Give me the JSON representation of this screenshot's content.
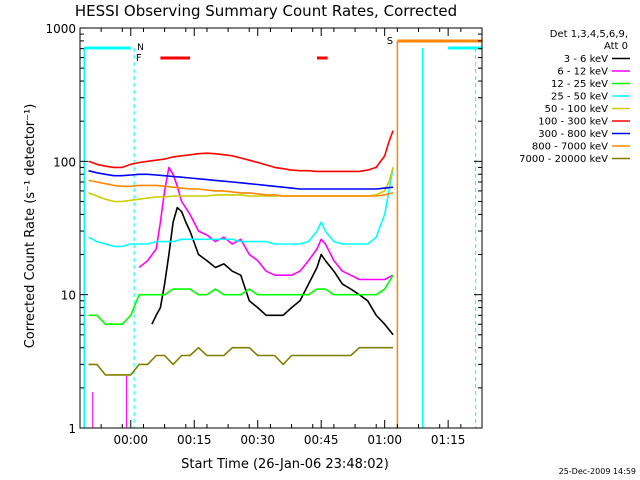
{
  "chart_data": {
    "type": "line",
    "title": "HESSI Observing Summary Count Rates, Corrected",
    "xlabel": "Start Time (26-Jan-06 23:48:02)",
    "ylabel": "Corrected Count Rate (s⁻¹ detector⁻¹)",
    "yscale": "log",
    "ylim": [
      1,
      1000
    ],
    "xlim_minutes": [
      0,
      95
    ],
    "x_ticks": [
      "00:00",
      "00:15",
      "00:30",
      "00:45",
      "01:00",
      "01:15"
    ],
    "x_tick_minutes": [
      12,
      27,
      42,
      57,
      72,
      87
    ],
    "y_ticks": [
      "1",
      "10",
      "100",
      "1000"
    ],
    "y_tick_values": [
      1,
      10,
      100,
      1000
    ],
    "legend_header": [
      "Det 1,3,4,5,6,9,",
      "Att 0"
    ],
    "legend_position": "right",
    "footer_timestamp": "25-Dec-2009 14:59",
    "series": [
      {
        "name": "3 - 6 keV",
        "color": "#000000",
        "x": [
          17,
          18,
          19,
          20,
          21,
          22,
          23,
          24,
          25,
          26,
          28,
          30,
          32,
          34,
          36,
          38,
          40,
          42,
          44,
          46,
          48,
          50,
          52,
          54,
          56,
          57,
          58,
          60,
          62,
          64,
          66,
          68,
          70,
          72,
          74
        ],
        "values": [
          6,
          7,
          8,
          12,
          20,
          35,
          45,
          42,
          35,
          30,
          20,
          18,
          16,
          17,
          15,
          14,
          9,
          8,
          7,
          7,
          7,
          8,
          9,
          12,
          16,
          20,
          18,
          15,
          12,
          11,
          10,
          9,
          7,
          6,
          5
        ]
      },
      {
        "name": "6 - 12 keV",
        "color": "#ff00ff",
        "x": [
          14,
          16,
          18,
          19,
          20,
          21,
          22,
          23,
          24,
          26,
          28,
          30,
          32,
          34,
          36,
          38,
          40,
          42,
          44,
          46,
          48,
          50,
          52,
          54,
          56,
          57,
          58,
          60,
          62,
          64,
          66,
          68,
          70,
          72,
          74
        ],
        "values": [
          16,
          18,
          22,
          35,
          60,
          90,
          80,
          65,
          50,
          40,
          30,
          28,
          25,
          27,
          24,
          26,
          20,
          18,
          15,
          14,
          14,
          14,
          15,
          18,
          22,
          26,
          24,
          18,
          15,
          14,
          13,
          13,
          13,
          13,
          14
        ]
      },
      {
        "name": "12 - 25 keV",
        "color": "#00ff00",
        "x": [
          2,
          4,
          6,
          8,
          10,
          12,
          14,
          16,
          18,
          20,
          22,
          24,
          26,
          28,
          30,
          32,
          34,
          36,
          38,
          40,
          42,
          44,
          46,
          48,
          50,
          52,
          54,
          56,
          58,
          60,
          62,
          64,
          66,
          68,
          70,
          72,
          74
        ],
        "values": [
          7,
          7,
          6,
          6,
          6,
          7,
          10,
          10,
          10,
          10,
          11,
          11,
          11,
          10,
          10,
          11,
          10,
          10,
          10,
          11,
          10,
          10,
          10,
          10,
          10,
          10,
          10,
          11,
          11,
          10,
          10,
          10,
          10,
          10,
          10,
          11,
          14
        ]
      },
      {
        "name": "25 - 50 keV",
        "color": "#00ffff",
        "x": [
          2,
          4,
          6,
          8,
          10,
          12,
          14,
          16,
          18,
          20,
          22,
          24,
          26,
          28,
          30,
          32,
          34,
          36,
          38,
          40,
          42,
          44,
          46,
          48,
          50,
          52,
          54,
          56,
          57,
          58,
          60,
          62,
          64,
          66,
          68,
          70,
          72,
          73,
          74
        ],
        "values": [
          27,
          25,
          24,
          23,
          23,
          24,
          24,
          24,
          25,
          25,
          25,
          26,
          26,
          26,
          26,
          26,
          26,
          26,
          25,
          25,
          25,
          25,
          24,
          24,
          24,
          24,
          25,
          30,
          35,
          30,
          25,
          24,
          24,
          24,
          24,
          27,
          40,
          60,
          90
        ]
      },
      {
        "name": "50 - 100 keV",
        "color": "#cccc00",
        "x": [
          2,
          4,
          6,
          8,
          10,
          12,
          14,
          16,
          18,
          20,
          22,
          24,
          26,
          28,
          30,
          32,
          34,
          36,
          38,
          40,
          42,
          44,
          46,
          48,
          50,
          52,
          54,
          56,
          58,
          60,
          62,
          64,
          66,
          68,
          70,
          72,
          73,
          74
        ],
        "values": [
          58,
          55,
          52,
          50,
          50,
          51,
          52,
          53,
          54,
          54,
          55,
          55,
          55,
          55,
          55,
          56,
          56,
          56,
          56,
          55,
          55,
          55,
          55,
          55,
          55,
          55,
          55,
          55,
          55,
          55,
          55,
          55,
          55,
          55,
          56,
          60,
          70,
          90
        ]
      },
      {
        "name": "100 - 300 keV",
        "color": "#ff0000",
        "x": [
          2,
          4,
          6,
          8,
          10,
          12,
          14,
          16,
          18,
          20,
          22,
          24,
          26,
          28,
          30,
          32,
          34,
          36,
          38,
          40,
          42,
          44,
          46,
          48,
          50,
          52,
          54,
          56,
          58,
          60,
          62,
          64,
          66,
          68,
          70,
          72,
          73,
          74
        ],
        "values": [
          100,
          95,
          92,
          90,
          90,
          95,
          98,
          100,
          102,
          104,
          108,
          110,
          112,
          114,
          115,
          114,
          112,
          110,
          106,
          102,
          98,
          94,
          90,
          88,
          86,
          85,
          85,
          84,
          84,
          84,
          84,
          84,
          84,
          86,
          90,
          110,
          140,
          170
        ]
      },
      {
        "name": "300 - 800 keV",
        "color": "#0000ff",
        "x": [
          2,
          4,
          6,
          8,
          10,
          12,
          14,
          16,
          18,
          20,
          22,
          24,
          26,
          28,
          30,
          32,
          34,
          36,
          38,
          40,
          42,
          44,
          46,
          48,
          50,
          52,
          54,
          56,
          58,
          60,
          62,
          64,
          66,
          68,
          70,
          72,
          74
        ],
        "values": [
          85,
          82,
          80,
          78,
          78,
          79,
          80,
          80,
          79,
          78,
          77,
          76,
          75,
          74,
          73,
          72,
          71,
          70,
          69,
          68,
          67,
          66,
          65,
          64,
          63,
          62,
          62,
          62,
          62,
          62,
          62,
          62,
          62,
          62,
          62,
          63,
          64
        ]
      },
      {
        "name": "800 - 7000 keV",
        "color": "#ff8800",
        "x": [
          2,
          4,
          6,
          8,
          10,
          12,
          14,
          16,
          18,
          20,
          22,
          24,
          26,
          28,
          30,
          32,
          34,
          36,
          38,
          40,
          42,
          44,
          46,
          48,
          50,
          52,
          54,
          56,
          58,
          60,
          62,
          64,
          66,
          68,
          70,
          72,
          74
        ],
        "values": [
          72,
          70,
          68,
          66,
          65,
          65,
          66,
          66,
          66,
          65,
          64,
          63,
          62,
          62,
          61,
          60,
          60,
          59,
          58,
          58,
          57,
          56,
          56,
          55,
          55,
          55,
          55,
          55,
          55,
          55,
          55,
          55,
          55,
          55,
          55,
          56,
          58
        ]
      },
      {
        "name": "7000 - 20000 keV",
        "color": "#808000",
        "x": [
          2,
          4,
          6,
          8,
          10,
          12,
          14,
          16,
          18,
          20,
          22,
          24,
          26,
          28,
          30,
          32,
          34,
          36,
          38,
          40,
          42,
          44,
          46,
          48,
          50,
          52,
          54,
          56,
          58,
          60,
          62,
          64,
          66,
          68,
          70,
          72,
          74
        ],
        "values": [
          3,
          3,
          2.5,
          2.5,
          2.5,
          2.5,
          3,
          3,
          3.5,
          3.5,
          3,
          3.5,
          3.5,
          4,
          3.5,
          3.5,
          3.5,
          4,
          4,
          4,
          3.5,
          3.5,
          3.5,
          3,
          3.5,
          3.5,
          3.5,
          3.5,
          3.5,
          3.5,
          3.5,
          3.5,
          4,
          4,
          4,
          4,
          4
        ]
      }
    ],
    "annotations": {
      "flag_N": "N",
      "flag_F": "F",
      "flag_S": "S"
    }
  }
}
